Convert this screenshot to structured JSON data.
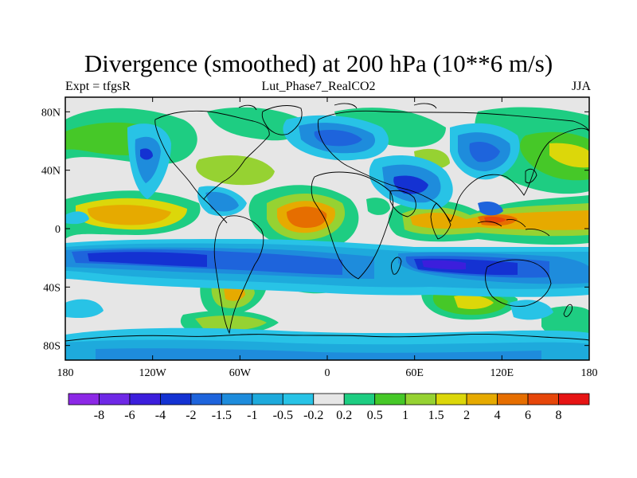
{
  "title": "Divergence (smoothed) at 200 hPa (10**6 m/s)",
  "subtitle_left": "Expt = tfgsR",
  "subtitle_center": "Lut_Phase7_RealCO2",
  "subtitle_right": "JJA",
  "y_ticks": [
    {
      "label": "80N",
      "lat": 80
    },
    {
      "label": "40N",
      "lat": 40
    },
    {
      "label": "0",
      "lat": 0
    },
    {
      "label": "40S",
      "lat": -40
    },
    {
      "label": "80S",
      "lat": -80
    }
  ],
  "x_ticks": [
    {
      "label": "180",
      "lon": -180
    },
    {
      "label": "120W",
      "lon": -120
    },
    {
      "label": "60W",
      "lon": -60
    },
    {
      "label": "0",
      "lon": 0
    },
    {
      "label": "60E",
      "lon": 60
    },
    {
      "label": "120E",
      "lon": 120
    },
    {
      "label": "180",
      "lon": 180
    }
  ],
  "colorbar": {
    "colors": [
      "#8c28e6",
      "#6e28e6",
      "#3c1edc",
      "#1432d2",
      "#1e64dc",
      "#1e8cdc",
      "#1eaadc",
      "#28c3e6",
      "#e6e6e6",
      "#1ecd82",
      "#46c828",
      "#96d232",
      "#dcd70a",
      "#e6aa00",
      "#e66e00",
      "#e6460a",
      "#e61414"
    ],
    "labels": [
      "-8",
      "-6",
      "-4",
      "-2",
      "-1.5",
      "-1",
      "-0.5",
      "-0.2",
      "0.2",
      "0.5",
      "1",
      "1.5",
      "2",
      "4",
      "6",
      "8"
    ]
  },
  "field_colors": {
    "neutral": "#e6e6e6",
    "weak_pos": "#1ecd82",
    "pos": "#46c828",
    "pos2": "#96d232",
    "pos3": "#dcd70a",
    "pos4": "#e6aa00",
    "pos5": "#e66e00",
    "pos6": "#e6460a",
    "weak_neg": "#28c3e6",
    "neg": "#1eaadc",
    "neg2": "#1e8cdc",
    "neg3": "#1e64dc",
    "neg4": "#1432d2",
    "neg5": "#3c1edc",
    "neg6": "#6e28e6"
  }
}
